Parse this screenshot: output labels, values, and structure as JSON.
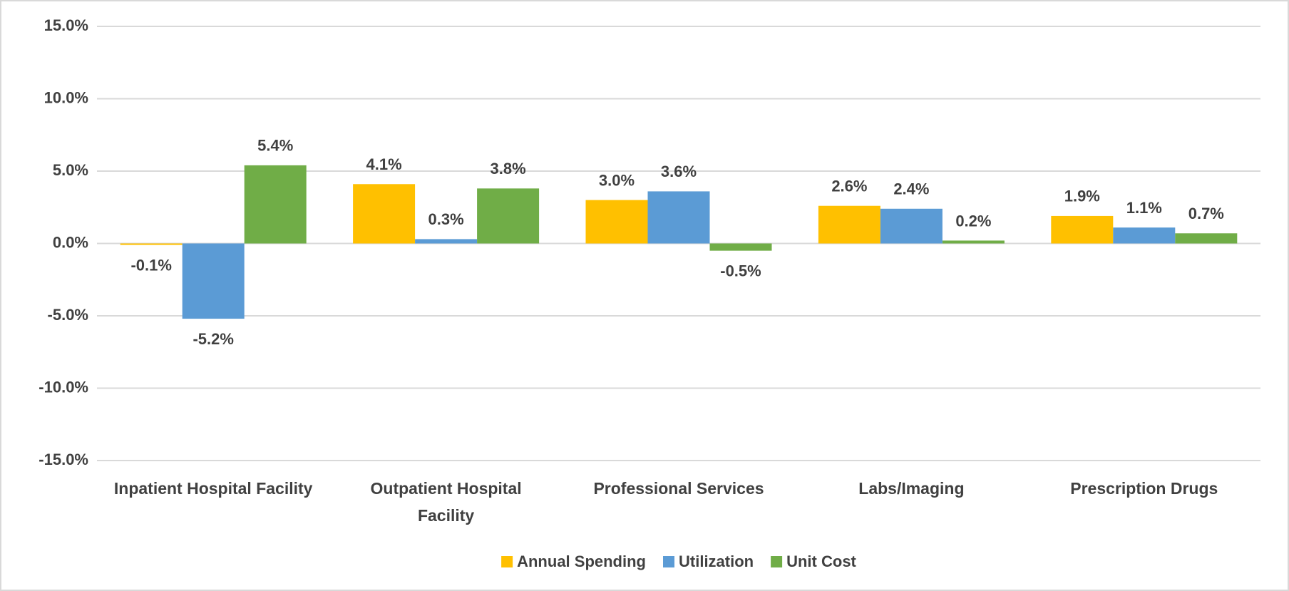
{
  "chart_data": {
    "type": "bar",
    "categories": [
      "Inpatient Hospital Facility",
      "Outpatient Hospital Facility",
      "Professional Services",
      "Labs/Imaging",
      "Prescription Drugs"
    ],
    "series": [
      {
        "name": "Annual Spending",
        "color": "#FFC000",
        "values": [
          -0.1,
          4.1,
          3.0,
          2.6,
          1.9
        ],
        "value_labels": [
          "-0.1%",
          "4.1%",
          "3.0%",
          "2.6%",
          "1.9%"
        ]
      },
      {
        "name": "Utilization",
        "color": "#5B9BD5",
        "values": [
          -5.2,
          0.3,
          3.6,
          2.4,
          1.1
        ],
        "value_labels": [
          "-5.2%",
          "0.3%",
          "3.6%",
          "2.4%",
          "1.1%"
        ]
      },
      {
        "name": "Unit Cost",
        "color": "#70AD47",
        "values": [
          5.4,
          3.8,
          -0.5,
          0.2,
          0.7
        ],
        "value_labels": [
          "5.4%",
          "3.8%",
          "-0.5%",
          "0.2%",
          "0.7%"
        ]
      }
    ],
    "ylim": [
      -15,
      15
    ],
    "yticks": [
      {
        "value": -15,
        "label": "-15.0%"
      },
      {
        "value": -10,
        "label": "-10.0%"
      },
      {
        "value": -5,
        "label": "-5.0%"
      },
      {
        "value": 0,
        "label": "0.0%"
      },
      {
        "value": 5,
        "label": "5.0%"
      },
      {
        "value": 10,
        "label": "10.0%"
      },
      {
        "value": 15,
        "label": "15.0%"
      }
    ],
    "grid": true,
    "legend": "bottom"
  }
}
